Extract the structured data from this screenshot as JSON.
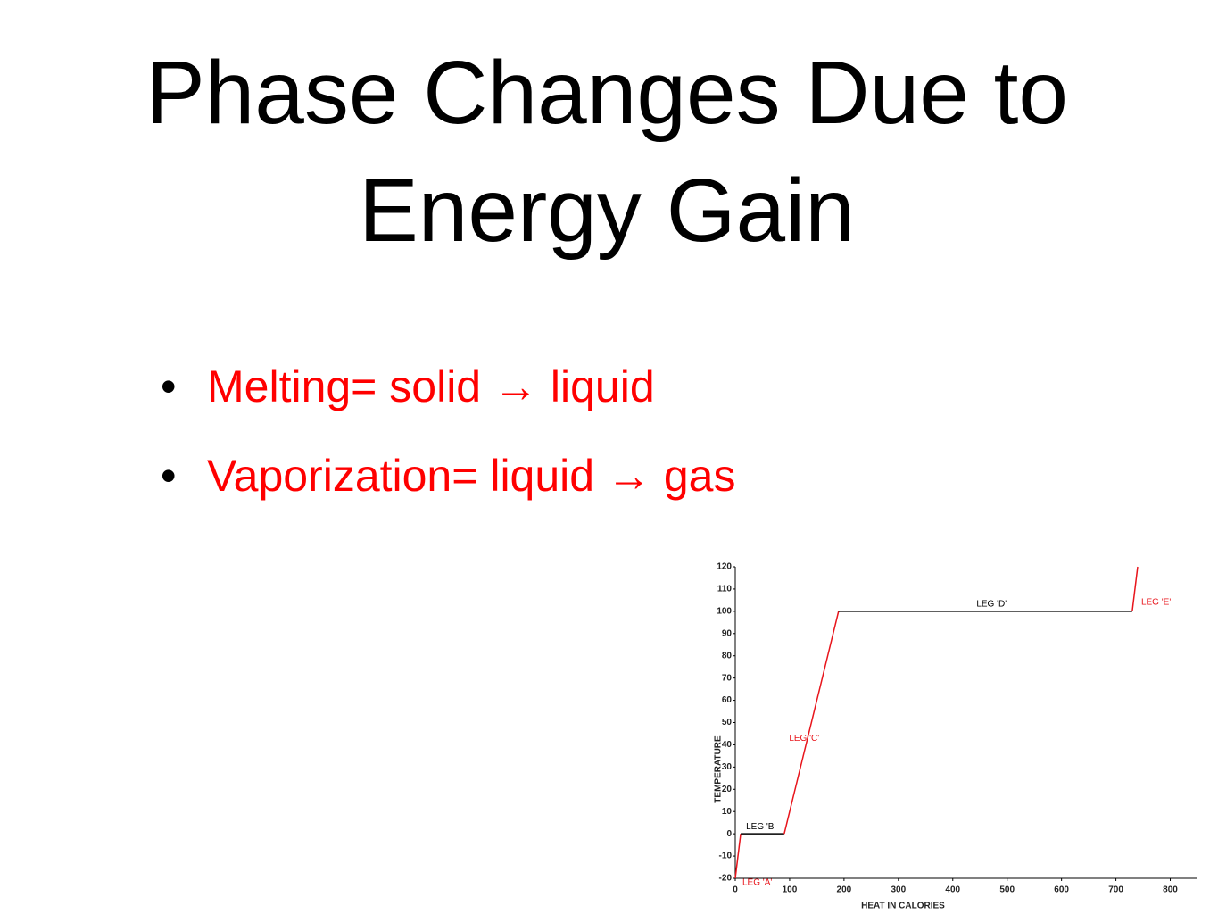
{
  "title": "Phase Changes Due to Energy Gain",
  "bullets": [
    "Melting= solid → liquid",
    "Vaporization= liquid → gas"
  ],
  "chart_data": {
    "type": "line",
    "x_label": "HEAT IN CALORIES",
    "y_label": "TEMPERATURE",
    "xlim": [
      0,
      850
    ],
    "ylim": [
      -20,
      120
    ],
    "xticks": [
      0,
      100,
      200,
      300,
      400,
      500,
      600,
      700,
      800
    ],
    "yticks": [
      -20,
      -10,
      0,
      10,
      20,
      30,
      40,
      50,
      60,
      70,
      80,
      90,
      100,
      110,
      120
    ],
    "series": [
      {
        "name": "LEG 'A'",
        "color": "#e8141b",
        "x": [
          0,
          10
        ],
        "values": [
          -20,
          0
        ]
      },
      {
        "name": "LEG 'B'",
        "color": "#000000",
        "x": [
          10,
          90
        ],
        "values": [
          0,
          0
        ]
      },
      {
        "name": "LEG 'C'",
        "color": "#e8141b",
        "x": [
          90,
          190
        ],
        "values": [
          0,
          100
        ]
      },
      {
        "name": "LEG 'D'",
        "color": "#000000",
        "x": [
          190,
          730
        ],
        "values": [
          100,
          100
        ]
      },
      {
        "name": "LEG 'E'",
        "color": "#e8141b",
        "x": [
          730,
          740
        ],
        "values": [
          100,
          120
        ]
      }
    ]
  }
}
